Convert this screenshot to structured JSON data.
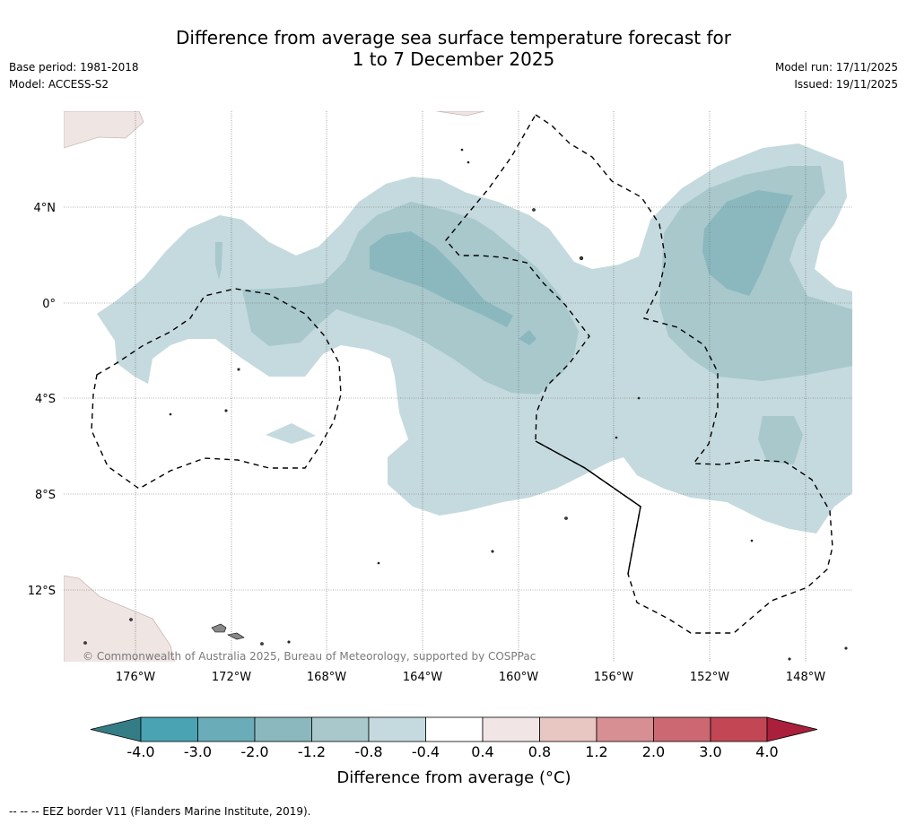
{
  "header": {
    "title_line1": "Difference from average sea surface temperature forecast for",
    "title_line2": "1 to 7 December 2025",
    "base_period": "Base period: 1981-2018",
    "model": "Model: ACCESS-S2",
    "model_run": "Model run: 17/11/2025",
    "issued": "Issued: 19/11/2025"
  },
  "map": {
    "lat_labels": [
      "4°N",
      "0°",
      "4°S",
      "8°S",
      "12°S"
    ],
    "lon_labels": [
      "176°W",
      "172°W",
      "168°W",
      "164°W",
      "160°W",
      "156°W",
      "152°W",
      "148°W"
    ],
    "copyright": "© Commonwealth of Australia 2025, Bureau of Meteorology, supported by COSPPac"
  },
  "colorbar": {
    "ticks": [
      "-4.0",
      "-3.0",
      "-2.0",
      "-1.2",
      "-0.8",
      "-0.4",
      "0.4",
      "0.8",
      "1.2",
      "2.0",
      "3.0",
      "4.0"
    ],
    "colors": [
      "#4aa3b3",
      "#6aadb8",
      "#8ab8be",
      "#a8c8cc",
      "#c5dade",
      "#ffffff",
      "#f1e6e5",
      "#e8c6c2",
      "#d78f93",
      "#cc6872",
      "#c24654"
    ],
    "low_color": "#357d86",
    "high_color": "#a91f3c",
    "label": "Difference from average (°C)"
  },
  "footer": {
    "eez_note": "--  --  -- EEZ border V11 (Flanders Marine Institute, 2019)."
  }
}
